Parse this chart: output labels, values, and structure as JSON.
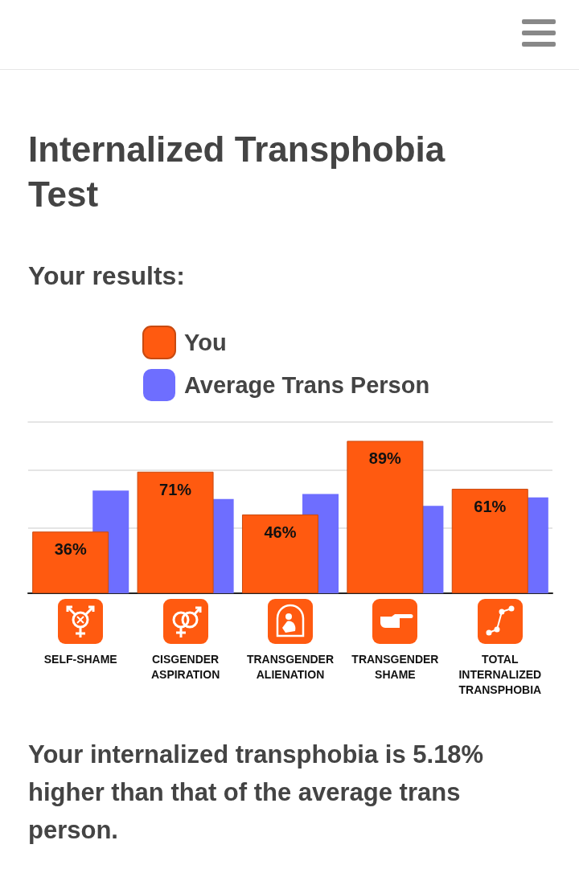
{
  "chart_data": {
    "type": "bar",
    "title": "Internalized Transphobia Test",
    "subtitle": "Your results:",
    "categories": [
      "SELF-SHAME",
      "CISGENDER ASPIRATION",
      "TRANSGENDER ALIENATION",
      "TRANSGENDER SHAME",
      "TOTAL INTERNALIZED TRANSPHOBIA"
    ],
    "series": [
      {
        "name": "You",
        "color": "#ff5a10",
        "values": [
          36,
          71,
          46,
          89,
          61
        ],
        "value_labels": [
          "36%",
          "71%",
          "46%",
          "89%",
          "61%"
        ]
      },
      {
        "name": "Average Trans Person",
        "color": "#6e6eff",
        "values": [
          60,
          55,
          58,
          51,
          56
        ]
      }
    ],
    "ylim": [
      0,
      100
    ],
    "yticks": [
      {
        "value": 0,
        "label": null
      },
      {
        "value": 38,
        "label": null
      },
      {
        "value": 72,
        "label": null
      }
    ],
    "grid": "y",
    "legend": "top",
    "tick_labels": "x",
    "annotations": [
      "Your internalized transphobia is 5.18% higher than that of the average trans person."
    ]
  }
}
